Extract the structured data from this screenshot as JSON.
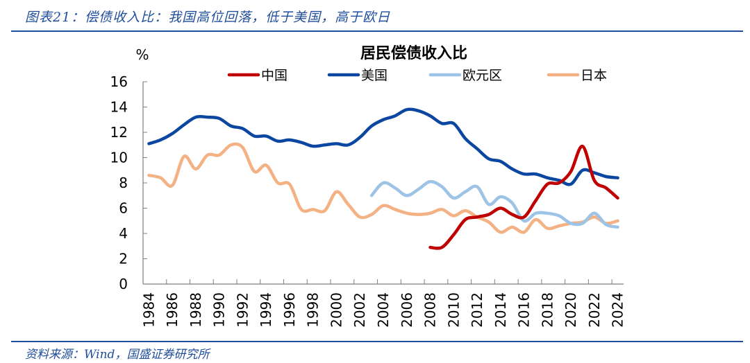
{
  "figure": {
    "caption": "图表21：偿债收入比：我国高位回落，低于美国，高于欧日",
    "source": "资料来源：Wind，国盛证券研究所"
  },
  "chart_data": {
    "type": "line",
    "title": "居民偿债收入比",
    "xlabel": "",
    "ylabel": "%",
    "ylim": [
      0,
      16
    ],
    "yticks": [
      "0",
      "2",
      "4",
      "6",
      "8",
      "10",
      "12",
      "14",
      "16"
    ],
    "xlim": [
      1984,
      2024
    ],
    "xticks": [
      "1984",
      "1986",
      "1988",
      "1990",
      "1992",
      "1994",
      "1996",
      "1998",
      "2000",
      "2002",
      "2004",
      "2006",
      "2008",
      "2010",
      "2012",
      "2014",
      "2016",
      "2018",
      "2020",
      "2022",
      "2024"
    ],
    "grid": false,
    "legend_position": "top",
    "series": [
      {
        "name": "中国",
        "color": "#c00000",
        "x": [
          2008,
          2009,
          2010,
          2011,
          2012,
          2013,
          2014,
          2015,
          2016,
          2017,
          2018,
          2019,
          2020,
          2021,
          2022,
          2023,
          2024
        ],
        "values": [
          2.9,
          2.9,
          3.9,
          5.1,
          5.3,
          5.5,
          6.0,
          5.5,
          5.3,
          6.6,
          7.9,
          8.0,
          8.9,
          10.9,
          8.2,
          7.6,
          6.8
        ]
      },
      {
        "name": "美国",
        "color": "#0b47a1",
        "x": [
          1984,
          1985,
          1986,
          1987,
          1988,
          1989,
          1990,
          1991,
          1992,
          1993,
          1994,
          1995,
          1996,
          1997,
          1998,
          1999,
          2000,
          2001,
          2002,
          2003,
          2004,
          2005,
          2006,
          2007,
          2008,
          2009,
          2010,
          2011,
          2012,
          2013,
          2014,
          2015,
          2016,
          2017,
          2018,
          2019,
          2020,
          2021,
          2022,
          2023,
          2024
        ],
        "values": [
          11.1,
          11.4,
          11.9,
          12.6,
          13.2,
          13.2,
          13.1,
          12.5,
          12.3,
          11.7,
          11.7,
          11.3,
          11.4,
          11.2,
          10.9,
          11.0,
          11.1,
          11.0,
          11.6,
          12.5,
          13.0,
          13.3,
          13.8,
          13.7,
          13.3,
          12.7,
          12.7,
          11.5,
          10.7,
          9.9,
          9.7,
          9.1,
          8.7,
          8.7,
          8.4,
          8.2,
          7.9,
          9.0,
          8.8,
          8.5,
          8.4
        ]
      },
      {
        "name": "欧元区",
        "color": "#9dc3e6",
        "x": [
          2003,
          2004,
          2005,
          2006,
          2007,
          2008,
          2009,
          2010,
          2011,
          2012,
          2013,
          2014,
          2015,
          2016,
          2017,
          2018,
          2019,
          2020,
          2021,
          2022,
          2023,
          2024
        ],
        "values": [
          7.0,
          8.0,
          7.6,
          7.0,
          7.5,
          8.1,
          7.7,
          6.8,
          7.3,
          7.7,
          6.3,
          6.9,
          6.4,
          5.0,
          5.6,
          5.6,
          5.4,
          4.8,
          4.8,
          5.6,
          4.7,
          4.5
        ]
      },
      {
        "name": "日本",
        "color": "#f4b183",
        "x": [
          1984,
          1985,
          1986,
          1987,
          1988,
          1989,
          1990,
          1991,
          1992,
          1993,
          1994,
          1995,
          1996,
          1997,
          1998,
          1999,
          2000,
          2001,
          2002,
          2003,
          2004,
          2005,
          2006,
          2007,
          2008,
          2009,
          2010,
          2011,
          2012,
          2013,
          2014,
          2015,
          2016,
          2017,
          2018,
          2019,
          2020,
          2021,
          2022,
          2023,
          2024
        ],
        "values": [
          8.6,
          8.4,
          7.8,
          10.1,
          9.1,
          10.2,
          10.2,
          11.0,
          10.8,
          8.9,
          9.4,
          8.0,
          7.9,
          5.9,
          5.9,
          5.8,
          7.3,
          6.3,
          5.3,
          5.5,
          6.2,
          5.9,
          5.6,
          5.5,
          5.6,
          5.9,
          5.4,
          5.8,
          5.3,
          4.9,
          4.1,
          4.5,
          4.1,
          5.1,
          4.4,
          4.6,
          4.8,
          4.9,
          5.3,
          4.8,
          5.0
        ]
      }
    ]
  }
}
